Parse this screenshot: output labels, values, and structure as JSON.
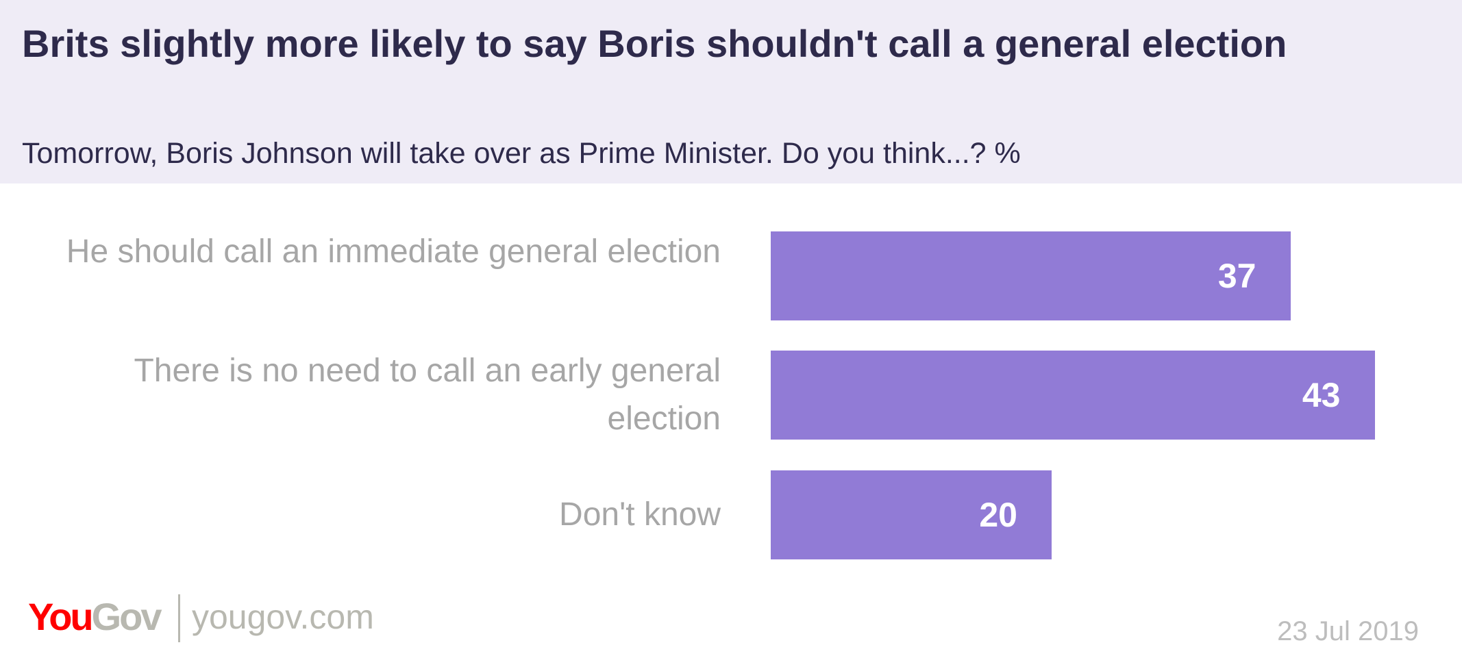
{
  "chart_data": {
    "type": "bar",
    "orientation": "horizontal",
    "title": "Brits slightly more likely to say Boris shouldn't call a general election",
    "subtitle": "Tomorrow, Boris Johnson will take over as Prime Minister. Do you think...? %",
    "categories": [
      "He should call an immediate general election",
      "There is no need to call an early general election",
      "Don't know"
    ],
    "values": [
      37,
      43,
      20
    ],
    "value_labels": [
      "37",
      "43",
      "20"
    ],
    "xlim": [
      0,
      45
    ],
    "grid": false,
    "bar_color": "#917bd6"
  },
  "footer": {
    "logo_you": "You",
    "logo_gov": "Gov",
    "site": "yougov.com",
    "date": "23 Jul 2019"
  }
}
